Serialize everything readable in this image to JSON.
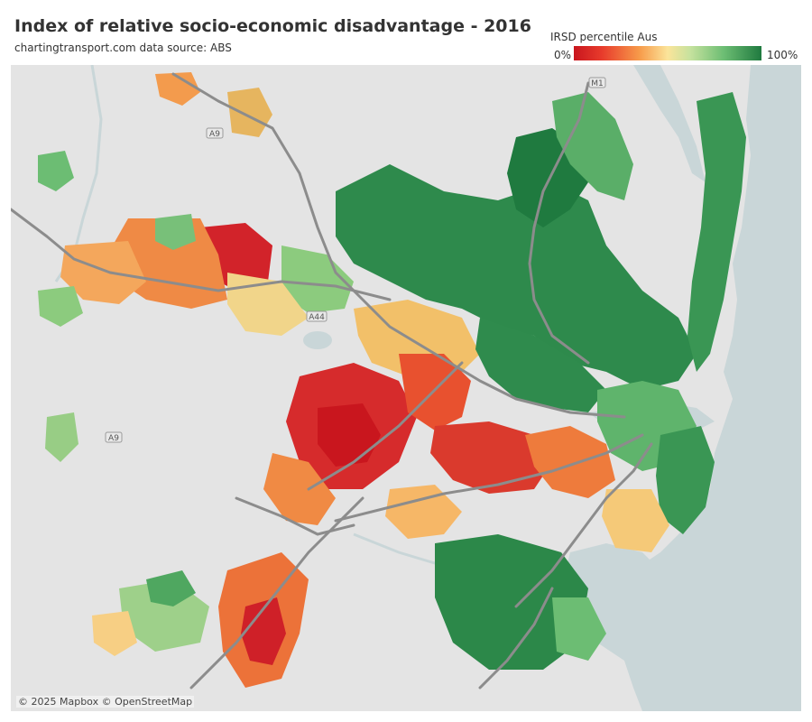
{
  "title": "Index of relative socio-economic disadvantage - 2016",
  "subtitle": "chartingtransport.com  data source: ABS",
  "legend": {
    "title": "IRSD percentile Aus",
    "min_label": "0%",
    "max_label": "100%",
    "colors": [
      "#c9161e",
      "#e83b2c",
      "#f79b4a",
      "#fbe49a",
      "#c6e29e",
      "#6cbd73",
      "#1f7a3f"
    ]
  },
  "attribution": "© 2025 Mapbox © OpenStreetMap",
  "road_labels": [
    {
      "id": "a9-north",
      "text": "A9"
    },
    {
      "id": "a44",
      "text": "A44"
    },
    {
      "id": "a9-west",
      "text": "A9"
    },
    {
      "id": "m1",
      "text": "M1"
    }
  ],
  "colors": {
    "land": "#e4e4e4",
    "water": "#c9d6d8",
    "road": "#8c8c8c"
  }
}
